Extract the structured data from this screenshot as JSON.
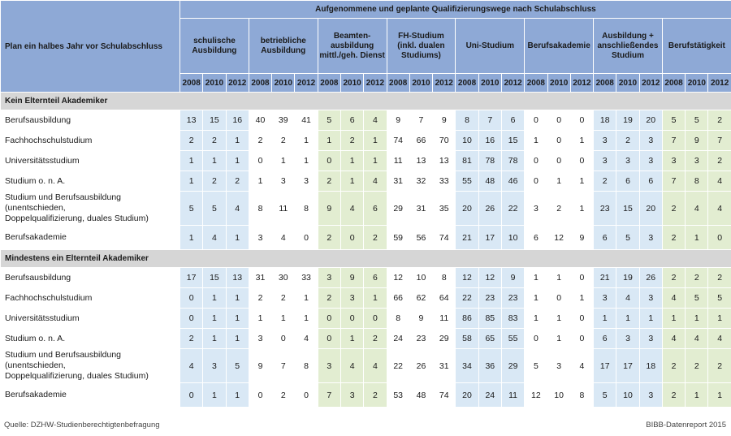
{
  "header": {
    "top_title": "Aufgenommene und geplante Qualifizierungswege nach Schulabschluss",
    "plan_label": "Plan ein halbes Jahr vor Schulabschluss",
    "groups": [
      {
        "line1": "schulische",
        "line2": "Ausbildung",
        "line3": ""
      },
      {
        "line1": "betriebliche",
        "line2": "Ausbildung",
        "line3": ""
      },
      {
        "line1": "Beamten-",
        "line2": "ausbildung",
        "line3": "mittl./geh. Dienst"
      },
      {
        "line1": "FH-Studium",
        "line2": "(inkl. dualen",
        "line3": "Studiums)"
      },
      {
        "line1": "Uni-Studium",
        "line2": "",
        "line3": ""
      },
      {
        "line1": "Berufsakademie",
        "line2": "",
        "line3": ""
      },
      {
        "line1": "Ausbildung +",
        "line2": "anschließendes",
        "line3": "Studium"
      },
      {
        "line1": "Berufstätigkeit",
        "line2": "",
        "line3": ""
      }
    ],
    "years": [
      "2008",
      "2010",
      "2012"
    ]
  },
  "sections": [
    {
      "title": "Kein Elternteil Akademiker",
      "rows": [
        {
          "line1": "Berufsausbildung",
          "line2": "",
          "values": [
            [
              "13",
              "15",
              "16"
            ],
            [
              "40",
              "39",
              "41"
            ],
            [
              "5",
              "6",
              "4"
            ],
            [
              "9",
              "7",
              "9"
            ],
            [
              "8",
              "7",
              "6"
            ],
            [
              "0",
              "0",
              "0"
            ],
            [
              "18",
              "19",
              "20"
            ],
            [
              "5",
              "5",
              "2"
            ]
          ]
        },
        {
          "line1": "Fachhochschulstudium",
          "line2": "",
          "values": [
            [
              "2",
              "2",
              "1"
            ],
            [
              "2",
              "2",
              "1"
            ],
            [
              "1",
              "2",
              "1"
            ],
            [
              "74",
              "66",
              "70"
            ],
            [
              "10",
              "16",
              "15"
            ],
            [
              "1",
              "0",
              "1"
            ],
            [
              "3",
              "2",
              "3"
            ],
            [
              "7",
              "9",
              "7"
            ]
          ]
        },
        {
          "line1": "Universitätsstudium",
          "line2": "",
          "values": [
            [
              "1",
              "1",
              "1"
            ],
            [
              "0",
              "1",
              "1"
            ],
            [
              "0",
              "1",
              "1"
            ],
            [
              "11",
              "13",
              "13"
            ],
            [
              "81",
              "78",
              "78"
            ],
            [
              "0",
              "0",
              "0"
            ],
            [
              "3",
              "3",
              "3"
            ],
            [
              "3",
              "3",
              "2"
            ]
          ]
        },
        {
          "line1": "Studium o. n. A.",
          "line2": "",
          "values": [
            [
              "1",
              "2",
              "2"
            ],
            [
              "1",
              "3",
              "3"
            ],
            [
              "2",
              "1",
              "4"
            ],
            [
              "31",
              "32",
              "33"
            ],
            [
              "55",
              "48",
              "46"
            ],
            [
              "0",
              "1",
              "1"
            ],
            [
              "2",
              "6",
              "6"
            ],
            [
              "7",
              "8",
              "4"
            ]
          ]
        },
        {
          "line1": "Studium und Berufsausbildung (unentschieden,",
          "line2": "Doppelqualifizierung, duales Studium)",
          "values": [
            [
              "5",
              "5",
              "4"
            ],
            [
              "8",
              "11",
              "8"
            ],
            [
              "9",
              "4",
              "6"
            ],
            [
              "29",
              "31",
              "35"
            ],
            [
              "20",
              "26",
              "22"
            ],
            [
              "3",
              "2",
              "1"
            ],
            [
              "23",
              "15",
              "20"
            ],
            [
              "2",
              "4",
              "4"
            ]
          ]
        },
        {
          "line1": "Berufsakademie",
          "line2": "",
          "values": [
            [
              "1",
              "4",
              "1"
            ],
            [
              "3",
              "4",
              "0"
            ],
            [
              "2",
              "0",
              "2"
            ],
            [
              "59",
              "56",
              "74"
            ],
            [
              "21",
              "17",
              "10"
            ],
            [
              "6",
              "12",
              "9"
            ],
            [
              "6",
              "5",
              "3"
            ],
            [
              "2",
              "1",
              "0"
            ]
          ]
        }
      ]
    },
    {
      "title": "Mindestens ein Elternteil Akademiker",
      "rows": [
        {
          "line1": "Berufsausbildung",
          "line2": "",
          "values": [
            [
              "17",
              "15",
              "13"
            ],
            [
              "31",
              "30",
              "33"
            ],
            [
              "3",
              "9",
              "6"
            ],
            [
              "12",
              "10",
              "8"
            ],
            [
              "12",
              "12",
              "9"
            ],
            [
              "1",
              "1",
              "0"
            ],
            [
              "21",
              "19",
              "26"
            ],
            [
              "2",
              "2",
              "2"
            ]
          ]
        },
        {
          "line1": "Fachhochschulstudium",
          "line2": "",
          "values": [
            [
              "0",
              "1",
              "1"
            ],
            [
              "2",
              "2",
              "1"
            ],
            [
              "2",
              "3",
              "1"
            ],
            [
              "66",
              "62",
              "64"
            ],
            [
              "22",
              "23",
              "23"
            ],
            [
              "1",
              "0",
              "1"
            ],
            [
              "3",
              "4",
              "3"
            ],
            [
              "4",
              "5",
              "5"
            ]
          ]
        },
        {
          "line1": "Universitätsstudium",
          "line2": "",
          "values": [
            [
              "0",
              "1",
              "1"
            ],
            [
              "1",
              "1",
              "1"
            ],
            [
              "0",
              "0",
              "0"
            ],
            [
              "8",
              "9",
              "11"
            ],
            [
              "86",
              "85",
              "83"
            ],
            [
              "1",
              "1",
              "0"
            ],
            [
              "1",
              "1",
              "1"
            ],
            [
              "1",
              "1",
              "1"
            ]
          ]
        },
        {
          "line1": "Studium o. n. A.",
          "line2": "",
          "values": [
            [
              "2",
              "1",
              "1"
            ],
            [
              "3",
              "0",
              "4"
            ],
            [
              "0",
              "1",
              "2"
            ],
            [
              "24",
              "23",
              "29"
            ],
            [
              "58",
              "65",
              "55"
            ],
            [
              "0",
              "1",
              "0"
            ],
            [
              "6",
              "3",
              "3"
            ],
            [
              "4",
              "4",
              "4"
            ]
          ]
        },
        {
          "line1": "Studium und Berufsausbildung (unentschieden,",
          "line2": "Doppelqualifizierung, duales Studium)",
          "values": [
            [
              "4",
              "3",
              "5"
            ],
            [
              "9",
              "7",
              "8"
            ],
            [
              "3",
              "4",
              "4"
            ],
            [
              "22",
              "26",
              "31"
            ],
            [
              "34",
              "36",
              "29"
            ],
            [
              "5",
              "3",
              "4"
            ],
            [
              "17",
              "17",
              "18"
            ],
            [
              "2",
              "2",
              "2"
            ]
          ]
        },
        {
          "line1": "Berufsakademie",
          "line2": "",
          "values": [
            [
              "0",
              "1",
              "1"
            ],
            [
              "0",
              "2",
              "0"
            ],
            [
              "7",
              "3",
              "2"
            ],
            [
              "53",
              "48",
              "74"
            ],
            [
              "20",
              "24",
              "11"
            ],
            [
              "12",
              "10",
              "8"
            ],
            [
              "5",
              "10",
              "3"
            ],
            [
              "2",
              "1",
              "1"
            ]
          ]
        }
      ]
    }
  ],
  "footer": {
    "source": "Quelle: DZHW-Studienberechtigtenbefragung",
    "brand": "BIBB-Datenreport 2015"
  },
  "colors": {
    "header_bg": "#8ea9d6",
    "section_bg": "#d6d6d6",
    "group_blue": "#d9e8f5",
    "group_green": "#e2edd1"
  }
}
